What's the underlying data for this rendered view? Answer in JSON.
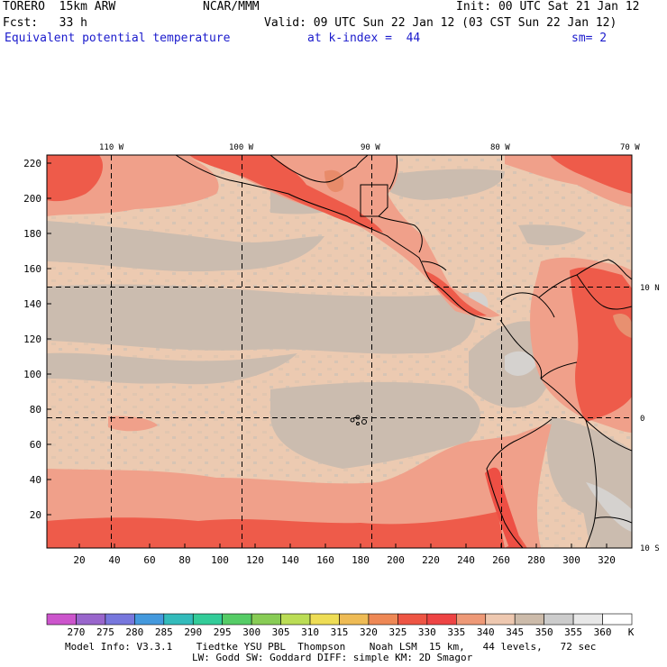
{
  "header": {
    "model": "TORERO  15km ARW",
    "org": "NCAR/MMM",
    "init": "Init: 00 UTC Sat 21 Jan 12",
    "fcst": "Fcst:   33 h",
    "valid": "Valid: 09 UTC Sun 22 Jan 12 (03 CST Sun 22 Jan 12)",
    "field": "Equivalent potential temperature",
    "level": "at k-index =  44",
    "smooth": "sm= 2"
  },
  "map": {
    "lon_labels": [
      "110 W",
      "100 W",
      "90 W",
      "80 W",
      "70 W"
    ],
    "lat_labels": [
      "10 N",
      "0",
      "10 S"
    ],
    "x_ticks": [
      "20",
      "40",
      "60",
      "80",
      "100",
      "120",
      "140",
      "160",
      "180",
      "200",
      "220",
      "240",
      "260",
      "280",
      "300",
      "320"
    ],
    "y_ticks": [
      "220",
      "200",
      "180",
      "160",
      "140",
      "120",
      "100",
      "80",
      "60",
      "40",
      "20"
    ]
  },
  "colorbar": {
    "unit": "K",
    "labels": [
      "270",
      "275",
      "280",
      "285",
      "290",
      "295",
      "300",
      "305",
      "310",
      "315",
      "320",
      "325",
      "330",
      "335",
      "340",
      "345",
      "350",
      "355",
      "360"
    ],
    "colors": [
      "#cc55cc",
      "#9966cc",
      "#7777dd",
      "#4499dd",
      "#33bbbb",
      "#33cc99",
      "#55cc66",
      "#88cc55",
      "#bbdd55",
      "#eedd55",
      "#eebb55",
      "#ee8855",
      "#ee5544",
      "#ee4444",
      "#ee9977",
      "#eec8b0",
      "#ccbbaa",
      "#cccccc",
      "#e8e8e8",
      "#ffffff"
    ]
  },
  "footer": {
    "line1": "Model Info: V3.3.1    Tiedtke YSU PBL  Thompson    Noah LSM  15 km,   44 levels,   72 sec",
    "line2": "LW: Godd SW: Goddard DIFF: simple KM: 2D Smagor"
  }
}
